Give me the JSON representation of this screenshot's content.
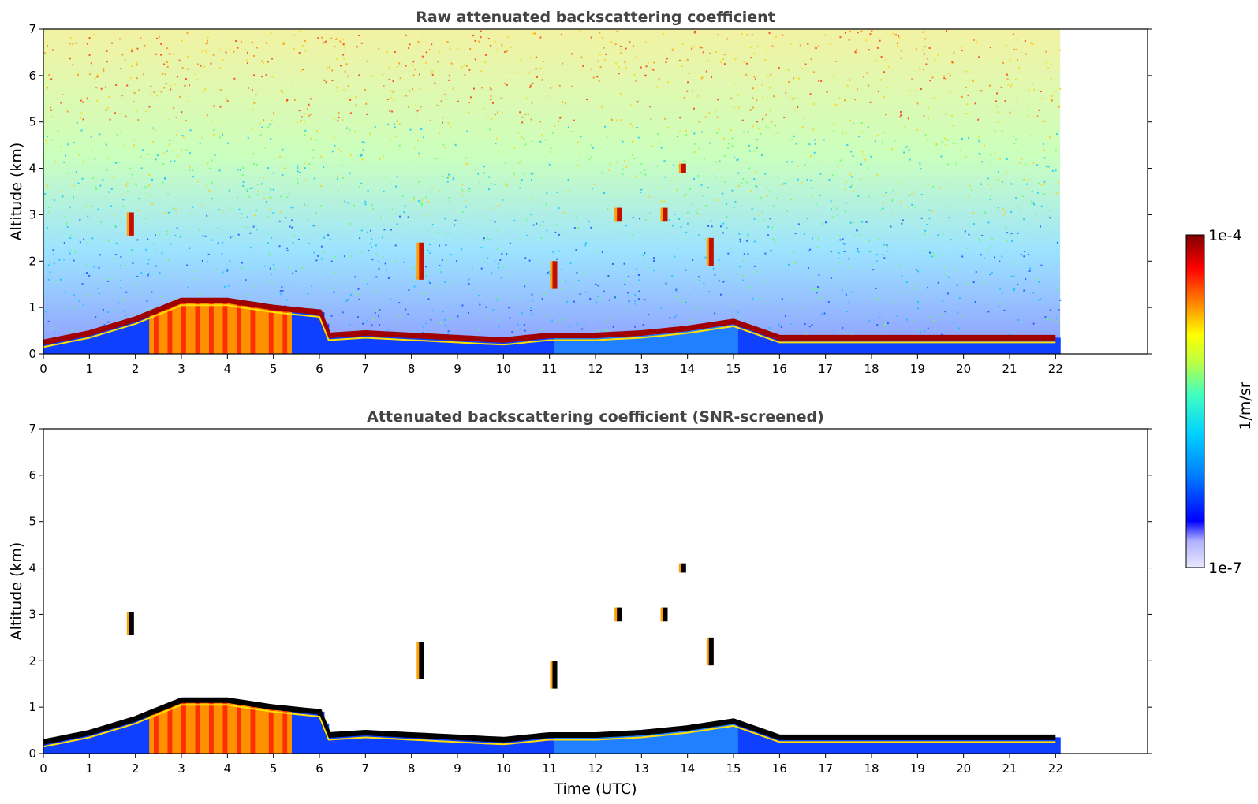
{
  "chart_data": [
    {
      "type": "heatmap",
      "title": "Raw attenuated backscattering coefficient",
      "xlabel": "",
      "ylabel": "Altitude (km)",
      "xlim": [
        0,
        24
      ],
      "ylim": [
        0,
        7
      ],
      "xticks": [
        "0",
        "1",
        "2",
        "3",
        "4",
        "5",
        "6",
        "7",
        "8",
        "9",
        "10",
        "11",
        "12",
        "13",
        "14",
        "15",
        "16",
        "17",
        "18",
        "19",
        "20",
        "21",
        "22"
      ],
      "yticks": [
        "0",
        "1",
        "2",
        "3",
        "4",
        "5",
        "6",
        "7"
      ],
      "data_end_hour": 22.1,
      "grid": false,
      "features": {
        "boundary_layer_top_km": [
          [
            0,
            0.25
          ],
          [
            1,
            0.45
          ],
          [
            2,
            0.75
          ],
          [
            3,
            1.15
          ],
          [
            4,
            1.15
          ],
          [
            5,
            1.0
          ],
          [
            6,
            0.9
          ],
          [
            6.2,
            0.4
          ],
          [
            7,
            0.45
          ],
          [
            8,
            0.4
          ],
          [
            9,
            0.35
          ],
          [
            10,
            0.3
          ],
          [
            11,
            0.4
          ],
          [
            12,
            0.4
          ],
          [
            13,
            0.45
          ],
          [
            14,
            0.55
          ],
          [
            15,
            0.7
          ],
          [
            16,
            0.35
          ],
          [
            17,
            0.35
          ],
          [
            18,
            0.35
          ],
          [
            19,
            0.35
          ],
          [
            20,
            0.35
          ],
          [
            21,
            0.35
          ],
          [
            22,
            0.35
          ]
        ],
        "cloud_patches": [
          {
            "t": 1.9,
            "z": 2.8,
            "dz": 0.5
          },
          {
            "t": 8.2,
            "z": 2.0,
            "dz": 0.8
          },
          {
            "t": 11.1,
            "z": 1.7,
            "dz": 0.6
          },
          {
            "t": 12.5,
            "z": 3.0,
            "dz": 0.3
          },
          {
            "t": 13.5,
            "z": 3.0,
            "dz": 0.3
          },
          {
            "t": 13.9,
            "z": 4.0,
            "dz": 0.2
          },
          {
            "t": 14.5,
            "z": 2.2,
            "dz": 0.6
          }
        ]
      }
    },
    {
      "type": "heatmap",
      "title": "Attenuated backscattering coefficient (SNR-screened)",
      "xlabel": "Time (UTC)",
      "ylabel": "Altitude (km)",
      "xlim": [
        0,
        24
      ],
      "ylim": [
        0,
        7
      ],
      "xticks": [
        "0",
        "1",
        "2",
        "3",
        "4",
        "5",
        "6",
        "7",
        "8",
        "9",
        "10",
        "11",
        "12",
        "13",
        "14",
        "15",
        "16",
        "17",
        "18",
        "19",
        "20",
        "21",
        "22"
      ],
      "yticks": [
        "0",
        "1",
        "2",
        "3",
        "4",
        "5",
        "6",
        "7"
      ],
      "data_end_hour": 22.1,
      "grid": false
    }
  ],
  "colorbar": {
    "label": "1/m/sr",
    "max_label": "1e-4",
    "min_label": "1e-7",
    "scale": "log",
    "colormap": "jet",
    "colors": [
      "#e8e8ff",
      "#b0b0ff",
      "#0000ff",
      "#0080ff",
      "#00d0ff",
      "#40ffc0",
      "#c0ff40",
      "#ffff00",
      "#ff8000",
      "#ff0000",
      "#800000"
    ]
  }
}
